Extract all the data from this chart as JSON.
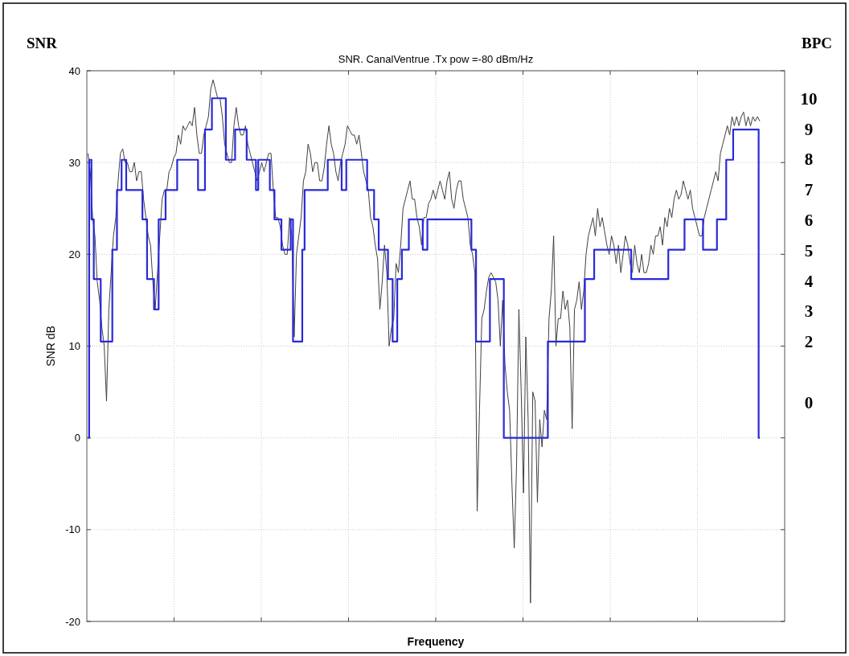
{
  "chart_data": {
    "type": "line",
    "title": "SNR. CanalVentrue .Tx pow =-80 dBm/Hz",
    "xlabel": "Frequency",
    "ylabel": "SNR dB",
    "y2label": "BPC",
    "annotations": [
      "SNR"
    ],
    "categories": [
      null,
      null,
      null,
      null,
      null,
      null,
      null,
      null,
      null,
      null,
      null,
      null,
      null,
      null,
      null,
      null,
      null,
      null,
      null,
      null,
      null,
      null,
      null,
      null,
      null,
      null,
      null,
      null,
      null,
      null,
      null,
      null,
      null,
      null,
      null,
      null,
      null,
      null,
      null,
      null,
      null,
      null,
      null,
      null,
      null,
      null,
      null,
      null,
      null,
      null,
      null,
      null,
      null,
      null,
      null,
      null,
      null,
      null,
      null,
      null,
      null,
      null,
      null,
      null,
      null,
      null,
      null,
      null,
      null,
      null,
      null,
      null,
      null,
      null,
      null,
      null,
      null,
      null,
      null,
      null,
      null,
      null,
      null,
      null,
      null,
      null,
      null,
      null,
      null,
      null,
      null,
      null,
      null,
      null,
      null,
      null,
      null,
      null,
      null,
      null,
      null,
      null,
      null,
      null,
      null,
      null,
      null,
      null,
      null,
      null,
      null,
      null,
      null,
      null,
      null,
      null,
      null,
      null,
      null,
      null,
      null,
      null,
      null,
      null,
      null,
      null,
      null,
      null,
      null,
      null,
      null,
      null,
      null,
      null,
      null,
      null,
      null,
      null,
      null,
      null,
      null,
      null,
      null,
      null,
      null,
      null,
      null,
      null,
      null,
      null,
      null,
      null,
      null,
      null,
      null,
      null,
      null,
      null,
      null,
      null,
      null,
      null,
      null,
      null,
      null,
      null,
      null,
      null,
      null,
      null,
      null,
      null,
      null,
      null,
      null,
      null,
      null,
      null,
      null,
      null,
      null,
      null,
      null,
      null,
      null,
      null,
      null,
      null,
      null,
      null,
      null,
      null,
      null,
      null,
      null,
      null,
      null,
      null,
      null,
      null,
      null,
      null,
      null,
      null,
      null,
      null,
      null,
      null,
      null,
      null,
      null,
      null,
      null,
      null,
      null,
      null,
      null,
      null,
      null,
      null,
      null,
      null,
      null,
      null,
      null,
      null,
      null,
      null,
      null,
      null,
      null,
      null,
      null,
      null,
      null,
      null,
      null,
      null,
      null,
      null,
      null,
      null,
      null,
      null,
      null,
      null,
      null,
      null,
      null,
      null,
      null,
      null,
      null,
      null,
      null,
      null,
      null,
      null,
      null,
      null,
      null,
      null,
      null,
      null,
      null,
      null,
      null,
      null,
      null,
      null,
      null,
      null,
      null,
      null,
      null,
      null,
      null,
      null,
      null,
      null,
      null,
      null,
      null,
      null,
      null,
      null,
      null,
      null,
      null,
      null,
      null
    ],
    "ylim": [
      -20,
      40
    ],
    "yticks": [
      -20,
      -10,
      0,
      10,
      20,
      30,
      40
    ],
    "y2lim": [
      -7.21,
      10.91
    ],
    "y2ticks": [
      0,
      2,
      3,
      4,
      5,
      6,
      7,
      8,
      9,
      10
    ],
    "grid": true,
    "line_style": "solid",
    "series": [
      {
        "color": "#404040",
        "values": [
          31,
          29,
          24,
          22,
          17,
          15,
          12,
          10,
          4,
          14,
          18,
          22,
          24,
          28,
          31,
          31.5,
          30,
          30,
          29,
          29,
          30,
          28,
          29,
          29,
          26,
          24,
          22,
          21,
          17,
          14,
          18,
          22,
          26,
          27,
          27,
          29,
          29.5,
          30.5,
          31,
          33,
          32,
          34,
          33.5,
          34,
          34.5,
          34,
          36,
          33,
          31,
          31,
          33,
          34,
          35,
          38,
          39,
          38,
          37,
          37,
          35,
          32,
          31,
          30,
          30,
          34,
          36,
          34,
          33,
          33,
          34,
          32,
          31,
          30,
          29,
          28,
          29,
          30,
          29,
          30,
          31,
          31,
          27,
          24,
          24,
          23,
          21,
          20,
          20,
          24,
          22,
          11,
          20,
          22,
          24,
          28,
          29,
          32,
          31,
          29,
          30,
          30,
          28,
          28,
          29.5,
          32,
          34,
          32,
          31,
          29,
          28,
          30,
          31,
          32,
          34,
          33.5,
          33,
          33,
          32,
          33,
          31,
          29,
          28,
          27,
          24,
          23,
          21,
          19.5,
          14,
          17,
          21,
          18,
          10,
          12,
          13,
          19,
          18,
          21,
          25,
          26,
          27,
          28,
          26,
          26,
          24,
          23,
          21,
          24,
          24,
          25.5,
          26,
          27,
          26,
          27,
          28,
          27,
          26,
          28,
          29,
          26,
          25,
          27,
          28,
          28,
          26,
          25,
          24,
          21,
          20,
          18,
          -8,
          3,
          13,
          14,
          16,
          17.5,
          18,
          17.5,
          17,
          15,
          10,
          15,
          8,
          5,
          3,
          -5,
          -12,
          -3,
          14,
          5,
          -6,
          11,
          2,
          -18,
          5,
          4,
          -7,
          2,
          -1,
          3,
          2,
          13,
          16,
          22,
          10,
          13,
          13,
          16,
          14,
          15,
          12,
          1,
          14,
          15,
          17,
          14,
          16,
          20,
          22,
          23,
          24,
          22,
          25,
          23,
          24,
          22.5,
          21,
          20,
          22,
          21,
          19,
          21,
          18,
          20,
          22,
          21,
          19,
          18,
          21,
          19,
          18,
          20,
          18,
          18,
          19,
          21,
          20,
          22,
          22,
          23,
          21,
          24,
          23,
          25,
          24,
          26,
          27,
          26,
          26.5,
          28,
          27,
          26,
          27,
          25,
          24,
          23,
          22,
          22,
          24,
          25,
          26,
          27,
          28,
          29,
          28,
          31,
          32,
          33,
          34,
          33,
          35,
          34,
          35,
          34,
          35,
          35.5,
          34,
          35,
          34,
          35,
          34.5,
          35,
          34.5
        ]
      },
      {
        "type": "step",
        "color": "#2a2ad8",
        "values": [
          0,
          30.3,
          23.8,
          17.3,
          17.3,
          17.3,
          10.5,
          10.5,
          10.5,
          10.5,
          10.5,
          20.5,
          20.5,
          27,
          27,
          30.3,
          30.3,
          27,
          27,
          27,
          27,
          27,
          27,
          27,
          23.8,
          23.8,
          17.3,
          17.3,
          17.3,
          14,
          14,
          23.8,
          23.8,
          23.8,
          27,
          27,
          27,
          27,
          27,
          30.3,
          30.3,
          30.3,
          30.3,
          30.3,
          30.3,
          30.3,
          30.3,
          30.3,
          27,
          27,
          27,
          33.6,
          33.6,
          33.6,
          37,
          37,
          37,
          37,
          37,
          37,
          30.3,
          30.3,
          30.3,
          30.3,
          33.6,
          33.6,
          33.6,
          33.6,
          33.6,
          30.3,
          30.3,
          30.3,
          30.3,
          27,
          30.3,
          30.3,
          30.3,
          30.3,
          30.3,
          27,
          27,
          23.8,
          23.8,
          23.8,
          20.5,
          20.5,
          20.5,
          20.5,
          23.8,
          10.5,
          10.5,
          10.5,
          10.5,
          20.5,
          27,
          27,
          27,
          27,
          27,
          27,
          27,
          27,
          27,
          27,
          30.3,
          30.3,
          30.3,
          30.3,
          30.3,
          30.3,
          27,
          27,
          30.3,
          30.3,
          30.3,
          30.3,
          30.3,
          30.3,
          30.3,
          30.3,
          30.3,
          27,
          27,
          27,
          23.8,
          23.8,
          20.5,
          20.5,
          20.5,
          20.5,
          17.3,
          17.3,
          10.5,
          10.5,
          17.3,
          17.3,
          20.5,
          20.5,
          20.5,
          23.8,
          23.8,
          23.8,
          23.8,
          23.8,
          23.8,
          20.5,
          20.5,
          23.8,
          23.8,
          23.8,
          23.8,
          23.8,
          23.8,
          23.8,
          23.8,
          23.8,
          23.8,
          23.8,
          23.8,
          23.8,
          23.8,
          23.8,
          23.8,
          23.8,
          23.8,
          23.8,
          20.5,
          20.5,
          10.5,
          10.5,
          10.5,
          10.5,
          10.5,
          10.5,
          17.3,
          17.3,
          17.3,
          17.3,
          17.3,
          17.3,
          0,
          0,
          0,
          0,
          0,
          0,
          0,
          0,
          0,
          0,
          0,
          0,
          0,
          0,
          0,
          0,
          0,
          0,
          0,
          10.5,
          10.5,
          10.5,
          10.5,
          10.5,
          10.5,
          10.5,
          10.5,
          10.5,
          10.5,
          10.5,
          10.5,
          10.5,
          10.5,
          10.5,
          10.5,
          17.3,
          17.3,
          17.3,
          17.3,
          20.5,
          20.5,
          20.5,
          20.5,
          20.5,
          20.5,
          20.5,
          20.5,
          20.5,
          20.5,
          20.5,
          20.5,
          20.5,
          20.5,
          20.5,
          20.5,
          17.3,
          17.3,
          17.3,
          17.3,
          17.3,
          17.3,
          17.3,
          17.3,
          17.3,
          17.3,
          17.3,
          17.3,
          17.3,
          17.3,
          17.3,
          17.3,
          20.5,
          20.5,
          20.5,
          20.5,
          20.5,
          20.5,
          20.5,
          23.8,
          23.8,
          23.8,
          23.8,
          23.8,
          23.8,
          23.8,
          23.8,
          20.5,
          20.5,
          20.5,
          20.5,
          20.5,
          20.5,
          23.8,
          23.8,
          23.8,
          23.8,
          30.3,
          30.3,
          30.3,
          33.6,
          33.6,
          33.6,
          33.6,
          33.6,
          33.6,
          33.6,
          33.6,
          33.6,
          33.6,
          33.6,
          0
        ]
      }
    ]
  }
}
